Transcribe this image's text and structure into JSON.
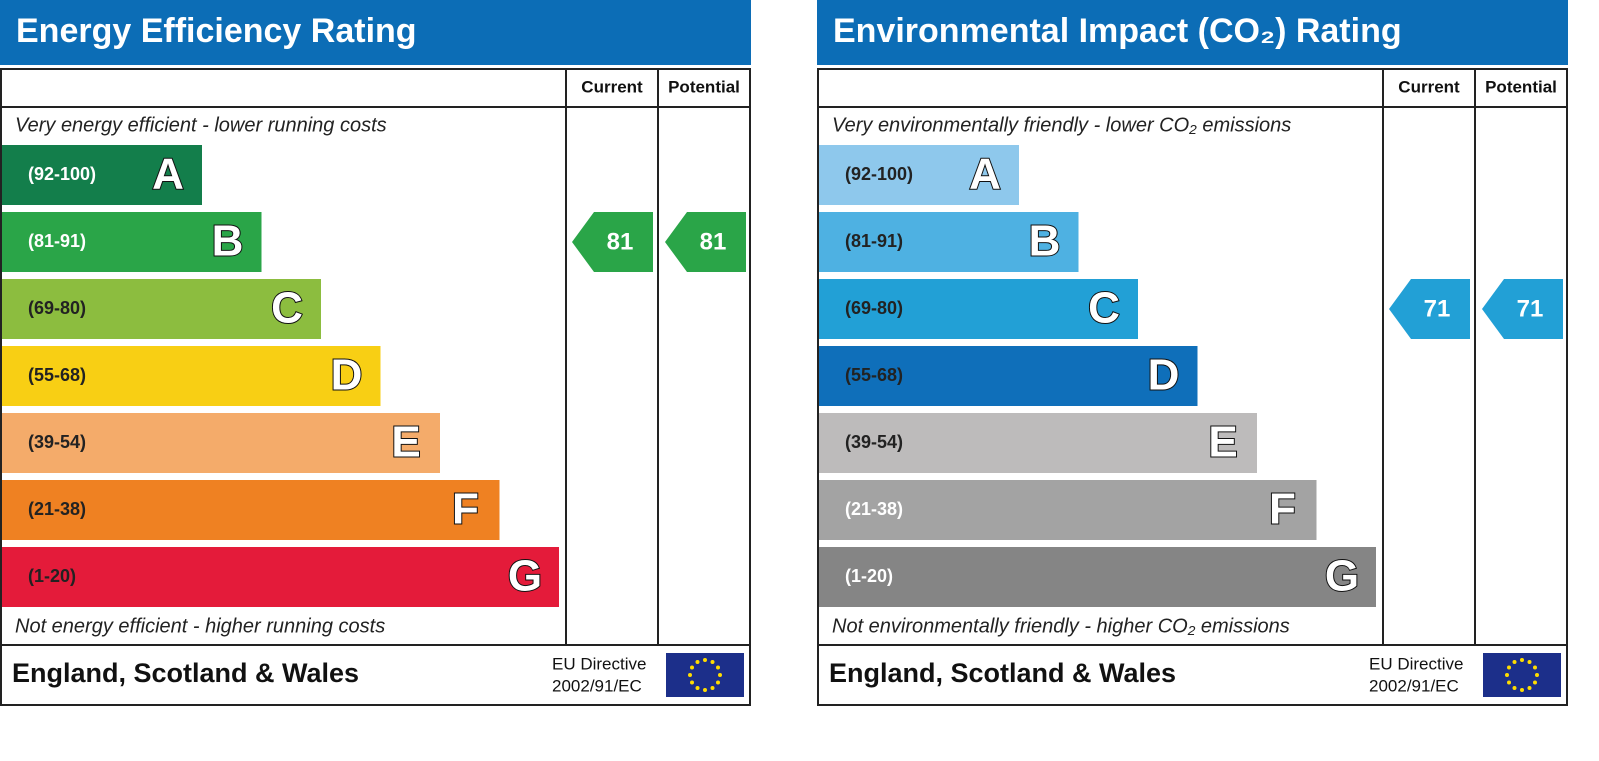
{
  "panels": [
    {
      "title": "Energy Efficiency Rating",
      "column_headers": [
        "Current",
        "Potential"
      ],
      "top_text": "Very energy efficient - lower running costs",
      "bottom_text": "Not energy efficient - higher running costs",
      "bands": [
        {
          "range": "(92-100)",
          "letter": "A",
          "color": "#137e4b",
          "text_color": "#ffffff"
        },
        {
          "range": "(81-91)",
          "letter": "B",
          "color": "#2aa548",
          "text_color": "#ffffff"
        },
        {
          "range": "(69-80)",
          "letter": "C",
          "color": "#8cbd3f",
          "text_color": "#222222"
        },
        {
          "range": "(55-68)",
          "letter": "D",
          "color": "#f8cf14",
          "text_color": "#222222"
        },
        {
          "range": "(39-54)",
          "letter": "E",
          "color": "#f4ab6a",
          "text_color": "#222222"
        },
        {
          "range": "(21-38)",
          "letter": "F",
          "color": "#ef8122",
          "text_color": "#222222"
        },
        {
          "range": "(1-20)",
          "letter": "G",
          "color": "#e41b3a",
          "text_color": "#222222"
        }
      ],
      "current": 81,
      "potential": 81,
      "footer": "England, Scotland & Wales",
      "directive": [
        "EU Directive",
        "2002/91/EC"
      ]
    },
    {
      "title": "Environmental Impact (CO₂) Rating",
      "column_headers": [
        "Current",
        "Potential"
      ],
      "top_text": "Very environmentally friendly - lower CO₂ emissions",
      "bottom_text": "Not environmentally friendly - higher CO₂ emissions",
      "bands": [
        {
          "range": "(92-100)",
          "letter": "A",
          "color": "#8ec8ec",
          "text_color": "#222222"
        },
        {
          "range": "(81-91)",
          "letter": "B",
          "color": "#4eb1e2",
          "text_color": "#222222"
        },
        {
          "range": "(69-80)",
          "letter": "C",
          "color": "#22a0d6",
          "text_color": "#222222"
        },
        {
          "range": "(55-68)",
          "letter": "D",
          "color": "#0f6fba",
          "text_color": "#222222"
        },
        {
          "range": "(39-54)",
          "letter": "E",
          "color": "#bdbbbb",
          "text_color": "#222222"
        },
        {
          "range": "(21-38)",
          "letter": "F",
          "color": "#a3a3a3",
          "text_color": "#ffffff"
        },
        {
          "range": "(1-20)",
          "letter": "G",
          "color": "#858585",
          "text_color": "#ffffff"
        }
      ],
      "current": 71,
      "potential": 71,
      "footer": "England, Scotland & Wales",
      "directive": [
        "EU Directive",
        "2002/91/EC"
      ]
    }
  ]
}
